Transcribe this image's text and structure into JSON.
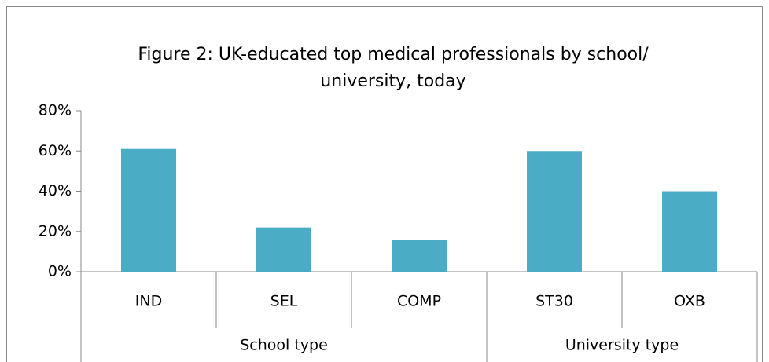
{
  "chart_data": {
    "type": "bar",
    "title": [
      "Figure 2: UK-educated top medical professionals by school/",
      "university, today"
    ],
    "groups": [
      {
        "name": "School type",
        "categories": [
          "IND",
          "SEL",
          "COMP"
        ]
      },
      {
        "name": "University type",
        "categories": [
          "ST30",
          "OXB"
        ]
      }
    ],
    "values": [
      61,
      22,
      16,
      60,
      40
    ],
    "color": "#4bacc6",
    "ylim": [
      0,
      80
    ],
    "yticks": [
      {
        "value": 0,
        "label": "0%"
      },
      {
        "value": 20,
        "label": "20%"
      },
      {
        "value": 40,
        "label": "40%"
      },
      {
        "value": 60,
        "label": "60%"
      },
      {
        "value": 80,
        "label": "80%"
      }
    ],
    "grid": false
  }
}
